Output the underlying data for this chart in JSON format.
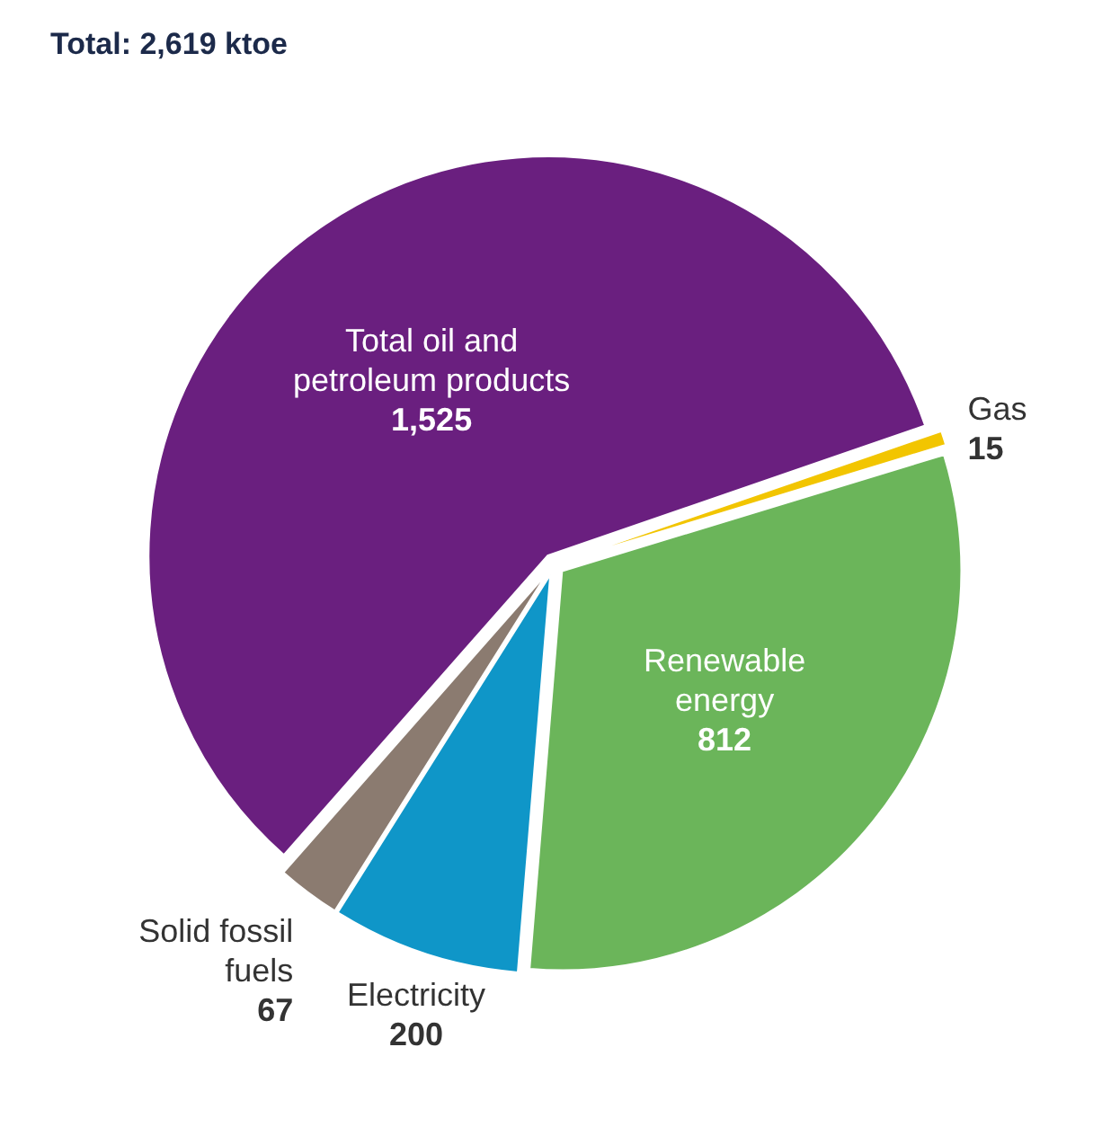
{
  "chart_data": {
    "type": "pie",
    "title": "Total: 2,619 ktoe",
    "categories": [
      "Gas",
      "Renewable energy",
      "Electricity",
      "Solid fossil fuels",
      "Total oil and petroleum products"
    ],
    "values": [
      15,
      812,
      200,
      67,
      1525
    ],
    "colors": [
      "#f2c500",
      "#6bb55a",
      "#0f96c8",
      "#8b7b70",
      "#6a1f7f"
    ],
    "value_labels": [
      "15",
      "812",
      "200",
      "67",
      "1,525"
    ]
  }
}
